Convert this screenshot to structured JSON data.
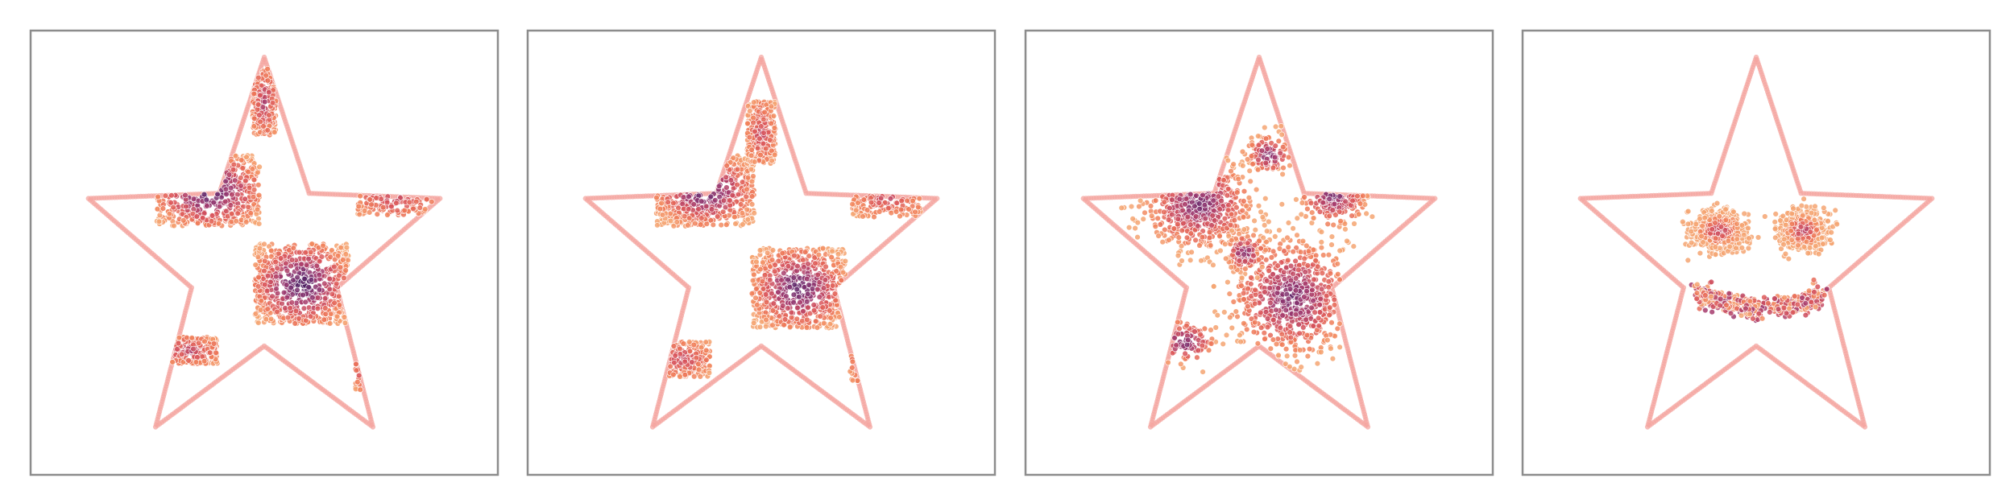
{
  "figure": {
    "panel_count": 4,
    "boundary_color": "#f4a6a0",
    "frame_color": "#8c8c8c",
    "colormap": "magma",
    "colormap_stops": [
      "#3b1a5a",
      "#6b2c6e",
      "#a23a6e",
      "#d9545a",
      "#f07c58",
      "#f5a572"
    ]
  },
  "chart_data": [
    {
      "type": "scatter",
      "boundary": "star",
      "description_key": "checkerboard-in-star",
      "clusters": [
        {
          "cx": 0.38,
          "cy": 0.36,
          "w": 0.22,
          "h": 0.16,
          "density": "high"
        },
        {
          "cx": 0.58,
          "cy": 0.57,
          "w": 0.2,
          "h": 0.18,
          "density": "high"
        },
        {
          "cx": 0.5,
          "cy": 0.16,
          "w": 0.05,
          "h": 0.15,
          "density": "medium"
        },
        {
          "cx": 0.78,
          "cy": 0.37,
          "w": 0.16,
          "h": 0.09,
          "density": "medium"
        },
        {
          "cx": 0.34,
          "cy": 0.72,
          "w": 0.12,
          "h": 0.06,
          "density": "medium"
        },
        {
          "cx": 0.71,
          "cy": 0.76,
          "w": 0.03,
          "h": 0.1,
          "density": "low"
        }
      ],
      "color_shift": 0.0
    },
    {
      "type": "scatter",
      "boundary": "star",
      "description_key": "checkerboard-in-star-step",
      "clusters": [
        {
          "cx": 0.38,
          "cy": 0.36,
          "w": 0.21,
          "h": 0.16,
          "density": "high"
        },
        {
          "cx": 0.58,
          "cy": 0.58,
          "w": 0.2,
          "h": 0.18,
          "density": "high"
        },
        {
          "cx": 0.5,
          "cy": 0.23,
          "w": 0.06,
          "h": 0.14,
          "density": "medium"
        },
        {
          "cx": 0.77,
          "cy": 0.37,
          "w": 0.15,
          "h": 0.1,
          "density": "medium"
        },
        {
          "cx": 0.33,
          "cy": 0.74,
          "w": 0.12,
          "h": 0.08,
          "density": "medium"
        },
        {
          "cx": 0.71,
          "cy": 0.74,
          "w": 0.04,
          "h": 0.1,
          "density": "low"
        }
      ],
      "color_shift": 0.05
    },
    {
      "type": "scatter",
      "boundary": "star",
      "description_key": "blobs-in-star",
      "clusters": [
        {
          "cx": 0.37,
          "cy": 0.39,
          "w": 0.16,
          "h": 0.14,
          "density": "high"
        },
        {
          "cx": 0.57,
          "cy": 0.6,
          "w": 0.18,
          "h": 0.18,
          "density": "high"
        },
        {
          "cx": 0.66,
          "cy": 0.37,
          "w": 0.1,
          "h": 0.1,
          "density": "medium"
        },
        {
          "cx": 0.52,
          "cy": 0.28,
          "w": 0.07,
          "h": 0.06,
          "density": "low"
        },
        {
          "cx": 0.34,
          "cy": 0.7,
          "w": 0.1,
          "h": 0.07,
          "density": "low"
        },
        {
          "cx": 0.47,
          "cy": 0.5,
          "w": 0.06,
          "h": 0.06,
          "density": "low"
        }
      ],
      "color_shift": 0.15
    },
    {
      "type": "scatter",
      "boundary": "star",
      "description_key": "smiley-in-star",
      "clusters": [
        {
          "cx": 0.42,
          "cy": 0.45,
          "w": 0.08,
          "h": 0.06,
          "density": "high"
        },
        {
          "cx": 0.6,
          "cy": 0.45,
          "w": 0.07,
          "h": 0.06,
          "density": "high"
        },
        {
          "cx": 0.51,
          "cy": 0.6,
          "w": 0.16,
          "h": 0.04,
          "density": "smile"
        }
      ],
      "color_shift": 0.35
    }
  ]
}
